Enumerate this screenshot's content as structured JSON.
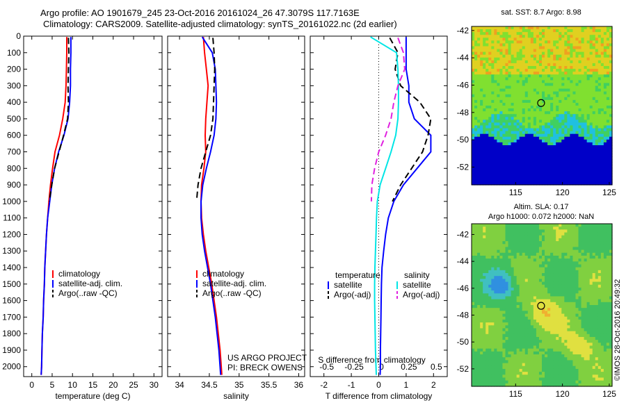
{
  "figure": {
    "title_line1": "Argo profile: AO 1901679_245 23-Oct-2016 20161024_26 47.3079S 117.7163E",
    "title_line2": "Climatology: CARS2009. Satellite-adjusted climatology: synTS_20161022.nc (2d earlier)",
    "project_line1": "US ARGO PROJECT",
    "project_line2": "PI: BRECK OWENS",
    "credit": "©IMOS 28-Oct-2016 20:49:32"
  },
  "colors": {
    "climatology": "#ff0000",
    "satellite": "#0000ff",
    "argo": "#000000",
    "sal_satellite": "#00e5e5",
    "sal_argo": "#e020e0"
  },
  "chart_data": [
    {
      "type": "line",
      "xlabel": "temperature (deg C)",
      "ylabel": "",
      "xlim": [
        -2,
        32
      ],
      "ylim": [
        2060,
        0
      ],
      "xticks": [
        0,
        5,
        10,
        15,
        20,
        25,
        30
      ],
      "yticks": [
        0,
        100,
        200,
        300,
        400,
        500,
        600,
        700,
        800,
        900,
        1000,
        1100,
        1200,
        1300,
        1400,
        1500,
        1600,
        1700,
        1800,
        1900,
        2000
      ],
      "legend": [
        "climatology",
        "satellite-adj. clim.",
        "Argo(..raw -QC)"
      ],
      "series": [
        {
          "name": "climatology",
          "style": "solid",
          "color": "#ff0000",
          "x": [
            8.6,
            8.6,
            8.5,
            8.4,
            8.2,
            7.6,
            6.8,
            5.7,
            5.1,
            4.6,
            4.2,
            3.9,
            3.6,
            3.4,
            3.2,
            3.1,
            2.9,
            2.8,
            2.6,
            2.5,
            2.4,
            2.3
          ],
          "y": [
            5,
            100,
            200,
            300,
            400,
            500,
            600,
            700,
            800,
            900,
            1000,
            1100,
            1200,
            1300,
            1400,
            1500,
            1600,
            1700,
            1800,
            1900,
            2000,
            2050
          ]
        },
        {
          "name": "satellite-adj. clim.",
          "style": "solid",
          "color": "#0000ff",
          "x": [
            9.6,
            9.6,
            9.5,
            9.5,
            9.3,
            8.9,
            7.9,
            6.6,
            5.6,
            4.9,
            4.4,
            3.9,
            3.6,
            3.4,
            3.2,
            3.1,
            2.9,
            2.8,
            2.6,
            2.5,
            2.4,
            2.3
          ],
          "y": [
            5,
            100,
            200,
            300,
            400,
            500,
            600,
            700,
            800,
            900,
            1000,
            1100,
            1200,
            1300,
            1400,
            1500,
            1600,
            1700,
            1800,
            1900,
            2000,
            2050
          ]
        },
        {
          "name": "Argo(..raw -QC)",
          "style": "dash",
          "color": "#000000",
          "x": [
            9.0,
            9.1,
            9.0,
            8.9,
            9.0,
            8.8,
            7.8,
            6.7,
            5.6,
            4.9,
            4.3
          ],
          "y": [
            10,
            100,
            200,
            300,
            400,
            500,
            600,
            700,
            800,
            900,
            1000
          ]
        }
      ]
    },
    {
      "type": "line",
      "xlabel": "salinity",
      "ylabel": "",
      "xlim": [
        33.8,
        36.1
      ],
      "ylim": [
        2060,
        0
      ],
      "xticks": [
        34,
        34.5,
        35,
        35.5,
        36
      ],
      "legend": [
        "climatology",
        "satellite-adj. clim.",
        "Argo(..raw -QC)"
      ],
      "series": [
        {
          "name": "climatology",
          "style": "solid",
          "color": "#ff0000",
          "x": [
            34.4,
            34.42,
            34.45,
            34.48,
            34.46,
            34.44,
            34.43,
            34.44,
            34.41,
            34.37,
            34.36,
            34.37,
            34.4,
            34.44,
            34.49,
            34.54,
            34.58,
            34.62,
            34.65,
            34.68,
            34.7,
            34.71
          ],
          "y": [
            5,
            100,
            200,
            300,
            400,
            500,
            600,
            700,
            800,
            900,
            1000,
            1100,
            1200,
            1300,
            1400,
            1500,
            1600,
            1700,
            1800,
            1900,
            2000,
            2050
          ]
        },
        {
          "name": "satellite-adj. clim.",
          "style": "solid",
          "color": "#0000ff",
          "x": [
            34.38,
            34.55,
            34.6,
            34.61,
            34.62,
            34.61,
            34.58,
            34.52,
            34.45,
            34.39,
            34.36,
            34.36,
            34.38,
            34.42,
            34.47,
            34.52,
            34.56,
            34.6,
            34.63,
            34.66,
            34.68,
            34.69
          ],
          "y": [
            5,
            100,
            200,
            300,
            400,
            500,
            600,
            700,
            800,
            900,
            1000,
            1100,
            1200,
            1300,
            1400,
            1500,
            1600,
            1700,
            1800,
            1900,
            2000,
            2050
          ]
        },
        {
          "name": "Argo(..raw -QC)",
          "style": "dash",
          "color": "#000000",
          "x": [
            34.56,
            34.58,
            34.59,
            34.58,
            34.57,
            34.56,
            34.52,
            34.44,
            34.36,
            34.31,
            34.29
          ],
          "y": [
            10,
            100,
            200,
            300,
            400,
            500,
            600,
            700,
            800,
            900,
            980
          ]
        }
      ]
    },
    {
      "type": "line",
      "xlabel": "T difference from climatology",
      "ylabel": "",
      "top_axis_label": "S difference from climatology",
      "xlim": [
        -2.5,
        2.5
      ],
      "ylim": [
        2060,
        0
      ],
      "xticks": [
        -2,
        -1,
        0,
        1,
        2
      ],
      "top_xticks": [
        "-0.5",
        "-0.25",
        "0",
        "0.25",
        "0.5"
      ],
      "legend_temperature_header": "temperature",
      "legend_salinity_header": "salinity",
      "legend_temperature": [
        "satellite",
        "Argo(-adj)"
      ],
      "legend_salinity": [
        "satellite",
        "Argo(-adj)"
      ],
      "series": [
        {
          "name": "temperature satellite",
          "style": "solid",
          "color": "#0000ff",
          "x": [
            1.0,
            1.0,
            1.0,
            1.1,
            1.1,
            1.3,
            1.9,
            1.9,
            1.4,
            0.9,
            0.55,
            0.35,
            0.25,
            0.18,
            0.12,
            0.1,
            0.09,
            0.08,
            0.07,
            0.06,
            0.06,
            0.05
          ],
          "y": [
            5,
            100,
            200,
            300,
            400,
            500,
            600,
            700,
            800,
            900,
            1000,
            1100,
            1200,
            1300,
            1400,
            1500,
            1600,
            1700,
            1800,
            1900,
            2000,
            2050
          ]
        },
        {
          "name": "temperature Argo(-adj)",
          "style": "dash",
          "color": "#000000",
          "x": [
            0.4,
            0.7,
            0.6,
            0.8,
            1.5,
            1.9,
            1.8,
            1.6,
            1.2,
            0.8,
            0.5
          ],
          "y": [
            10,
            100,
            200,
            300,
            400,
            500,
            600,
            700,
            800,
            900,
            1000
          ]
        },
        {
          "name": "salinity satellite",
          "style": "solid",
          "color": "#00e5e5",
          "x": [
            -0.3,
            0.65,
            0.7,
            0.72,
            0.72,
            0.7,
            0.62,
            0.45,
            0.25,
            0.05,
            -0.05,
            -0.08,
            -0.1,
            -0.12,
            -0.14,
            -0.15,
            -0.15,
            -0.14,
            -0.13,
            -0.12,
            -0.1,
            -0.09
          ],
          "y": [
            5,
            100,
            200,
            300,
            400,
            500,
            600,
            700,
            800,
            900,
            1000,
            1100,
            1200,
            1300,
            1400,
            1500,
            1600,
            1700,
            1800,
            1900,
            2000,
            2050
          ]
        },
        {
          "name": "salinity Argo(-adj)",
          "style": "dash",
          "color": "#e020e0",
          "x": [
            0.7,
            0.9,
            0.95,
            0.7,
            0.55,
            0.45,
            0.25,
            0.0,
            -0.15,
            -0.25,
            -0.27
          ],
          "y": [
            10,
            100,
            200,
            300,
            400,
            500,
            600,
            700,
            800,
            900,
            1000
          ]
        }
      ]
    },
    {
      "type": "heatmap",
      "title": "sat. SST: 8.7 Argo: 8.98",
      "xlim": [
        110.3,
        125.3
      ],
      "ylim": [
        -53.3,
        -41.7
      ],
      "xticks": [
        115,
        120,
        125
      ],
      "yticks": [
        -42,
        -44,
        -46,
        -48,
        -50,
        -52
      ],
      "marker": {
        "lon": 117.72,
        "lat": -47.31
      }
    },
    {
      "type": "heatmap",
      "title_line1": "Altim. SLA: 0.17",
      "title_line2": "Argo h1000: 0.072 h2000: NaN",
      "xlim": [
        110.3,
        125.3
      ],
      "ylim": [
        -53.3,
        -41.2
      ],
      "xticks": [
        115,
        120,
        125
      ],
      "yticks": [
        -42,
        -44,
        -46,
        -48,
        -50,
        -52
      ],
      "marker": {
        "lon": 117.72,
        "lat": -47.31
      }
    }
  ]
}
